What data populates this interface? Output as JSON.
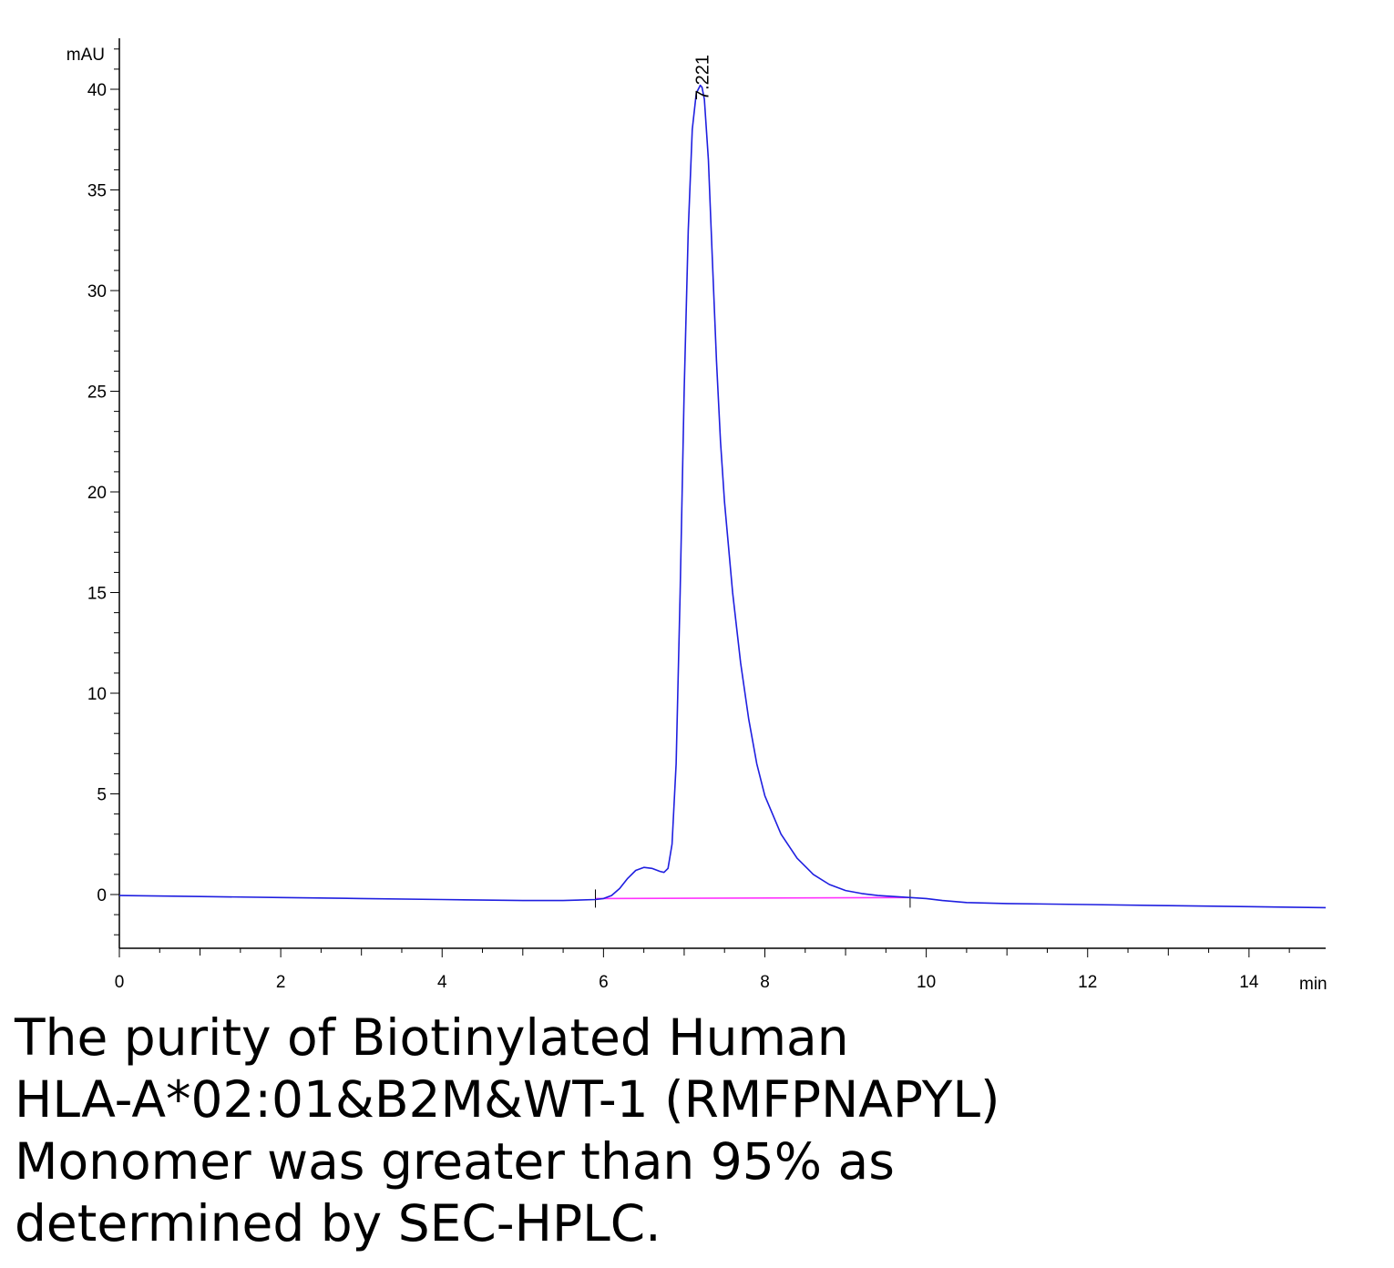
{
  "chart_data": {
    "type": "line",
    "xlabel": "min",
    "ylabel": "mAU",
    "xlim": [
      0,
      14.95
    ],
    "ylim": [
      -2.6,
      42.6
    ],
    "x_ticks": [
      "0",
      "2",
      "4",
      "6",
      "8",
      "10",
      "12",
      "14"
    ],
    "y_ticks": [
      "0",
      "5",
      "10",
      "15",
      "20",
      "25",
      "30",
      "35",
      "40"
    ],
    "peak_annotation": {
      "label": "7.221",
      "x": 7.221,
      "y": 40.1
    },
    "series": [
      {
        "color": "#1f1fe0",
        "x": [
          0,
          1,
          2,
          3,
          4,
          5,
          5.5,
          5.9,
          6.0,
          6.1,
          6.2,
          6.3,
          6.4,
          6.5,
          6.6,
          6.7,
          6.75,
          6.8,
          6.85,
          6.9,
          6.95,
          7.0,
          7.05,
          7.1,
          7.15,
          7.2,
          7.221,
          7.25,
          7.3,
          7.35,
          7.4,
          7.45,
          7.5,
          7.6,
          7.7,
          7.8,
          7.9,
          8.0,
          8.2,
          8.4,
          8.6,
          8.8,
          9.0,
          9.2,
          9.4,
          9.6,
          9.8,
          10.0,
          10.2,
          10.5,
          11,
          12,
          13,
          14,
          14.95
        ],
        "y": [
          -0.05,
          -0.1,
          -0.15,
          -0.2,
          -0.25,
          -0.3,
          -0.3,
          -0.25,
          -0.2,
          -0.05,
          0.3,
          0.8,
          1.2,
          1.35,
          1.3,
          1.15,
          1.1,
          1.3,
          2.5,
          6.5,
          15.0,
          25.0,
          33.0,
          38.0,
          39.8,
          40.2,
          40.1,
          39.5,
          36.5,
          31.5,
          26.5,
          22.5,
          19.5,
          15.0,
          11.5,
          8.7,
          6.5,
          4.9,
          3.0,
          1.8,
          1.0,
          0.5,
          0.2,
          0.05,
          -0.05,
          -0.1,
          -0.15,
          -0.2,
          -0.3,
          -0.4,
          -0.45,
          -0.5,
          -0.55,
          -0.6,
          -0.65
        ]
      }
    ],
    "baseline": {
      "color": "#ff33ff",
      "x": [
        5.9,
        9.8
      ],
      "y": [
        -0.2,
        -0.15
      ]
    },
    "integration_markers_x": [
      5.9,
      9.8
    ]
  },
  "caption": {
    "lines": [
      "The purity of Biotinylated Human",
      "HLA-A*02:01&B2M&WT-1 (RMFPNAPYL)",
      "Monomer was greater than 95% as",
      "determined by SEC-HPLC."
    ]
  }
}
